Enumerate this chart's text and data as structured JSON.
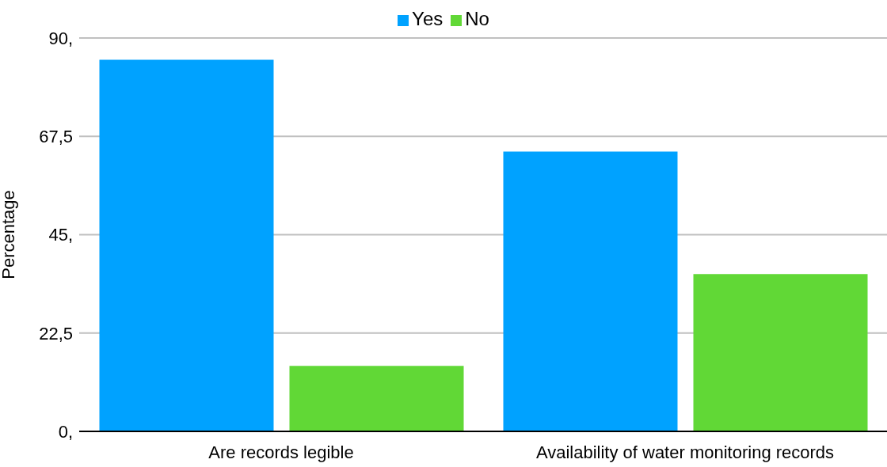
{
  "chart_data": {
    "type": "bar",
    "ylabel": "Percentage",
    "categories": [
      "Are records legible",
      "Availability of water monitoring records"
    ],
    "series": [
      {
        "name": "Yes",
        "color": "#00a2ff",
        "values": [
          85,
          64
        ]
      },
      {
        "name": "No",
        "color": "#61d836",
        "values": [
          15,
          36
        ]
      }
    ],
    "ylim": [
      0,
      90
    ],
    "yticks": [
      {
        "value": 0,
        "label": "0,"
      },
      {
        "value": 22.5,
        "label": "22,5"
      },
      {
        "value": 45,
        "label": "45,"
      },
      {
        "value": 67.5,
        "label": "67,5"
      },
      {
        "value": 90,
        "label": "90,"
      }
    ],
    "grid": "y",
    "legend": "top"
  }
}
